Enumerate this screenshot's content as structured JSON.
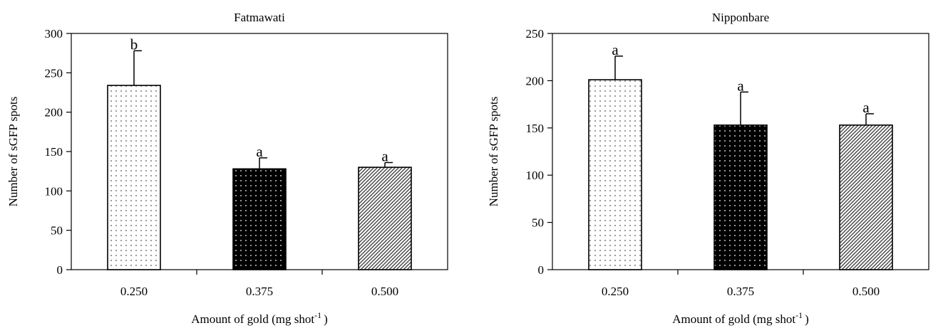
{
  "chart_data": [
    {
      "type": "bar",
      "title": "Fatmawati",
      "xlabel": "Amount of gold (mg shot",
      "xlabel_superscript": "-1",
      "xlabel_suffix": ")",
      "ylabel": "Number of sGFP spots",
      "categories": [
        "0.250",
        "0.375",
        "0.500"
      ],
      "values": [
        234,
        128,
        130
      ],
      "errors": [
        44,
        14,
        6
      ],
      "significance": [
        "b",
        "a",
        "a"
      ],
      "fills": [
        "sparse-dots",
        "black-dots",
        "diagonal-hatch"
      ],
      "ylim": [
        0,
        300
      ],
      "yticks": [
        0,
        50,
        100,
        150,
        200,
        250,
        300
      ],
      "grid": false,
      "legend": "none"
    },
    {
      "type": "bar",
      "title": "Nipponbare",
      "xlabel": "Amount of gold (mg shot",
      "xlabel_superscript": "-1",
      "xlabel_suffix": ")",
      "ylabel": "Number of sGFP spots",
      "categories": [
        "0.250",
        "0.375",
        "0.500"
      ],
      "values": [
        201,
        153,
        153
      ],
      "errors": [
        25,
        35,
        12
      ],
      "significance": [
        "a",
        "a",
        "a"
      ],
      "fills": [
        "sparse-dots",
        "black-dots",
        "diagonal-hatch"
      ],
      "ylim": [
        0,
        250
      ],
      "yticks": [
        0,
        50,
        100,
        150,
        200,
        250
      ],
      "grid": false,
      "legend": "none"
    }
  ]
}
